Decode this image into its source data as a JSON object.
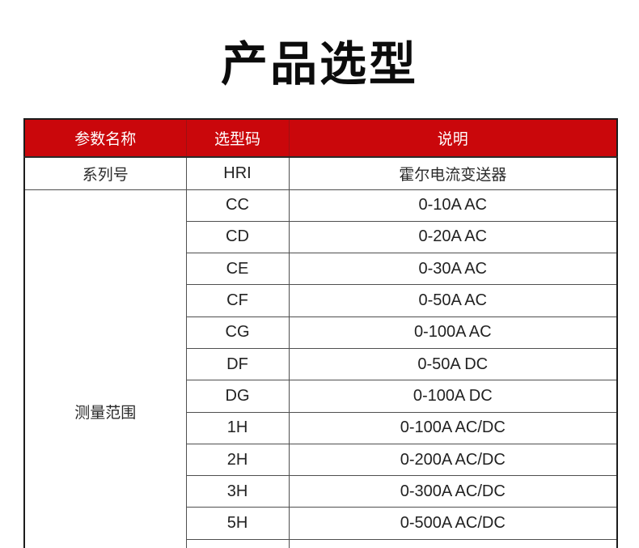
{
  "page": {
    "title": "产品选型"
  },
  "colors": {
    "header_bg": "#ca070b",
    "header_text": "#ffffff",
    "body_text": "#222222",
    "outer_border": "#1c1c1c",
    "inner_border": "#4f4f4f",
    "title_text": "#0c0c0c"
  },
  "table": {
    "columns": [
      {
        "label": "参数名称"
      },
      {
        "label": "选型码"
      },
      {
        "label": "说明"
      }
    ],
    "series_row": {
      "param": "系列号",
      "code": "HRI",
      "desc": "霍尔电流变送器"
    },
    "measure_group": {
      "param": "测量范围",
      "rows": [
        {
          "code": "CC",
          "desc": "0-10A AC"
        },
        {
          "code": "CD",
          "desc": "0-20A AC"
        },
        {
          "code": "CE",
          "desc": "0-30A AC"
        },
        {
          "code": "CF",
          "desc": "0-50A AC"
        },
        {
          "code": "CG",
          "desc": "0-100A AC"
        },
        {
          "code": "DF",
          "desc": "0-50A DC"
        },
        {
          "code": "DG",
          "desc": "0-100A DC"
        },
        {
          "code": "1H",
          "desc": "0-100A AC/DC"
        },
        {
          "code": "2H",
          "desc": "0-200A AC/DC"
        },
        {
          "code": "3H",
          "desc": "0-300A AC/DC"
        },
        {
          "code": "5H",
          "desc": "0-500A AC/DC"
        },
        {
          "code": "",
          "desc": ""
        }
      ]
    }
  }
}
